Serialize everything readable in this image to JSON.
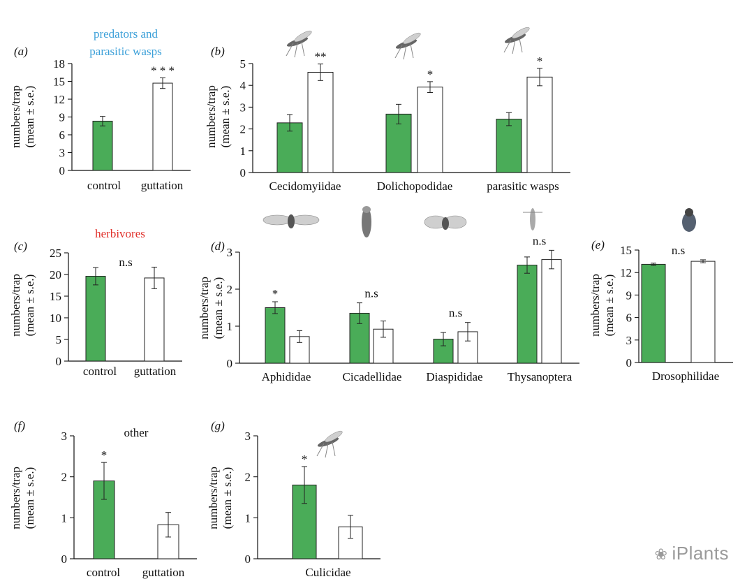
{
  "watermark": "iPlants",
  "colors": {
    "control": "#4aac58",
    "guttation": "#ffffff",
    "predators_heading": "#3a9fd8",
    "herbivores_heading": "#e0302a",
    "other_heading": "#111111"
  },
  "chart_data": [
    {
      "id": "a",
      "panel_label": "(a)",
      "type": "bar",
      "heading": [
        "predators and",
        "parasitic wasps"
      ],
      "heading_color": "#3a9fd8",
      "ylabel": [
        "numbers/trap",
        "(mean ± s.e.)"
      ],
      "ylim": [
        0,
        18
      ],
      "yticks": [
        0,
        3,
        6,
        9,
        12,
        15,
        18
      ],
      "groups": [
        {
          "label": "control",
          "bars": [
            {
              "series": "control",
              "value": 8.3,
              "err": 0.8,
              "sig": ""
            }
          ]
        },
        {
          "label": "guttation",
          "bars": [
            {
              "series": "guttation",
              "value": 14.7,
              "err": 0.9,
              "sig": "* * *"
            }
          ]
        }
      ]
    },
    {
      "id": "b",
      "panel_label": "(b)",
      "type": "bar",
      "heading": [],
      "heading_color": "#111111",
      "ylabel": [
        "numbers/trap",
        "(mean ± s.e.)"
      ],
      "ylim": [
        0,
        5
      ],
      "yticks": [
        0,
        1,
        2,
        3,
        4,
        5
      ],
      "groups": [
        {
          "label": "Cecidomyiidae",
          "icon": "gall-midge-icon",
          "bars": [
            {
              "series": "control",
              "value": 2.28,
              "err": 0.38,
              "sig": ""
            },
            {
              "series": "guttation",
              "value": 4.6,
              "err": 0.38,
              "sig": "**"
            }
          ]
        },
        {
          "label": "Dolichopodidae",
          "icon": "long-legged-fly-icon",
          "bars": [
            {
              "series": "control",
              "value": 2.68,
              "err": 0.45,
              "sig": ""
            },
            {
              "series": "guttation",
              "value": 3.92,
              "err": 0.25,
              "sig": "*"
            }
          ]
        },
        {
          "label": "parasitic wasps",
          "icon": "parasitic-wasp-icon",
          "bars": [
            {
              "series": "control",
              "value": 2.45,
              "err": 0.3,
              "sig": ""
            },
            {
              "series": "guttation",
              "value": 4.38,
              "err": 0.4,
              "sig": "*"
            }
          ]
        }
      ]
    },
    {
      "id": "c",
      "panel_label": "(c)",
      "type": "bar",
      "heading": [
        "herbivores"
      ],
      "heading_color": "#e0302a",
      "ylabel": [
        "numbers/trap",
        "(mean ± s.e.)"
      ],
      "ylim": [
        0,
        25
      ],
      "yticks": [
        0,
        5,
        10,
        15,
        20,
        25
      ],
      "group_sig": "n.s",
      "groups": [
        {
          "label": "control",
          "bars": [
            {
              "series": "control",
              "value": 19.6,
              "err": 2.0,
              "sig": ""
            }
          ]
        },
        {
          "label": "guttation",
          "bars": [
            {
              "series": "guttation",
              "value": 19.2,
              "err": 2.5,
              "sig": ""
            }
          ]
        }
      ]
    },
    {
      "id": "d",
      "panel_label": "(d)",
      "type": "bar",
      "heading": [],
      "heading_color": "#111111",
      "ylabel": [
        "numbers/trap",
        "(mean ± s.e.)"
      ],
      "ylim": [
        0,
        3
      ],
      "yticks": [
        0,
        1,
        2,
        3
      ],
      "groups": [
        {
          "label": "Aphididae",
          "icon": "aphid-icon",
          "sig": "*",
          "bars": [
            {
              "series": "control",
              "value": 1.5,
              "err": 0.16,
              "sig": ""
            },
            {
              "series": "guttation",
              "value": 0.72,
              "err": 0.16,
              "sig": ""
            }
          ]
        },
        {
          "label": "Cicadellidae",
          "icon": "leafhopper-icon",
          "sig": "n.s",
          "bars": [
            {
              "series": "control",
              "value": 1.35,
              "err": 0.28,
              "sig": ""
            },
            {
              "series": "guttation",
              "value": 0.92,
              "err": 0.22,
              "sig": ""
            }
          ]
        },
        {
          "label": "Diaspididae",
          "icon": "scale-insect-icon",
          "sig": "n.s",
          "bars": [
            {
              "series": "control",
              "value": 0.65,
              "err": 0.18,
              "sig": ""
            },
            {
              "series": "guttation",
              "value": 0.85,
              "err": 0.25,
              "sig": ""
            }
          ]
        },
        {
          "label": "Thysanoptera",
          "icon": "thrips-icon",
          "sig": "n.s",
          "bars": [
            {
              "series": "control",
              "value": 2.65,
              "err": 0.22,
              "sig": ""
            },
            {
              "series": "guttation",
              "value": 2.8,
              "err": 0.25,
              "sig": ""
            }
          ]
        }
      ]
    },
    {
      "id": "e",
      "panel_label": "(e)",
      "type": "bar",
      "heading": [],
      "heading_color": "#111111",
      "ylabel": [
        "numbers/trap",
        "(mean ± s.e.)"
      ],
      "ylim": [
        0,
        15
      ],
      "yticks": [
        0,
        3,
        6,
        9,
        12,
        15
      ],
      "groups": [
        {
          "label": "Drosophilidae",
          "icon": "fruit-fly-icon",
          "sig": "n.s",
          "bars": [
            {
              "series": "control",
              "value": 13.1,
              "err": 0.15,
              "sig": ""
            },
            {
              "series": "guttation",
              "value": 13.5,
              "err": 0.2,
              "sig": ""
            }
          ]
        }
      ]
    },
    {
      "id": "f",
      "panel_label": "(f)",
      "type": "bar",
      "heading": [
        "other"
      ],
      "heading_color": "#111111",
      "ylabel": [
        "numbers/trap",
        "(mean ± s.e.)"
      ],
      "ylim": [
        0,
        3
      ],
      "yticks": [
        0,
        1,
        2,
        3
      ],
      "groups": [
        {
          "label": "control",
          "bars": [
            {
              "series": "control",
              "value": 1.9,
              "err": 0.45,
              "sig": "*"
            }
          ]
        },
        {
          "label": "guttation",
          "bars": [
            {
              "series": "guttation",
              "value": 0.83,
              "err": 0.3,
              "sig": ""
            }
          ]
        }
      ]
    },
    {
      "id": "g",
      "panel_label": "(g)",
      "type": "bar",
      "heading": [],
      "heading_color": "#111111",
      "ylabel": [
        "numbers/trap",
        "(mean ± s.e.)"
      ],
      "ylim": [
        0,
        3
      ],
      "yticks": [
        0,
        1,
        2,
        3
      ],
      "groups": [
        {
          "label": "Culicidae",
          "icon": "mosquito-icon",
          "bars": [
            {
              "series": "control",
              "value": 1.8,
              "err": 0.45,
              "sig": "*"
            },
            {
              "series": "guttation",
              "value": 0.78,
              "err": 0.28,
              "sig": ""
            }
          ]
        }
      ]
    }
  ]
}
